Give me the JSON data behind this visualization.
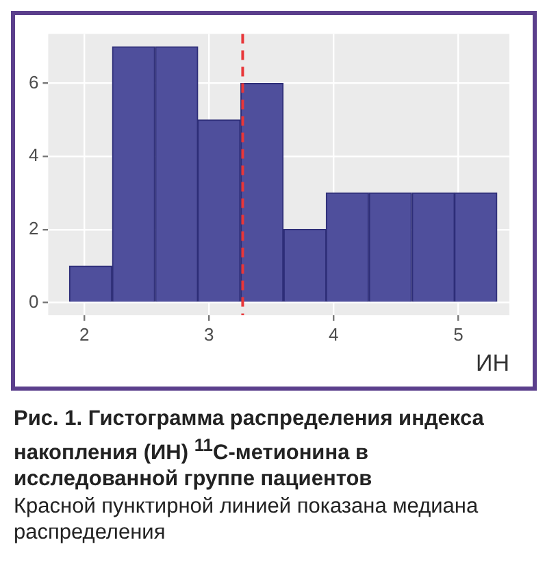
{
  "chart_data": {
    "type": "histogram",
    "title": "Рис. 1. Гистограмма распределения индекса накопления (ИН) $^{11}$C-метионина в исследованной группе пациентов",
    "subtitle": "Красной пунктирной линией показана медиана распределения",
    "xlabel": "ИН",
    "bins": [
      1.88,
      2.22,
      2.57,
      2.91,
      3.25,
      3.6,
      3.94,
      4.28,
      4.63,
      4.97,
      5.31
    ],
    "values": [
      1,
      7,
      7,
      5,
      6,
      2,
      3,
      3,
      3,
      3
    ],
    "color": "#4f4f9c",
    "xlim": [
      1.71,
      5.41
    ],
    "ylim": [
      -0.35,
      7.35
    ],
    "xticks": [
      2,
      3,
      4,
      5
    ],
    "yticks": [
      0,
      2,
      4,
      6
    ],
    "grid": true,
    "ref_lines": [
      {
        "axis": "x",
        "value": 3.27,
        "color": "#e8373a",
        "line_style": "dashed"
      }
    ]
  }
}
